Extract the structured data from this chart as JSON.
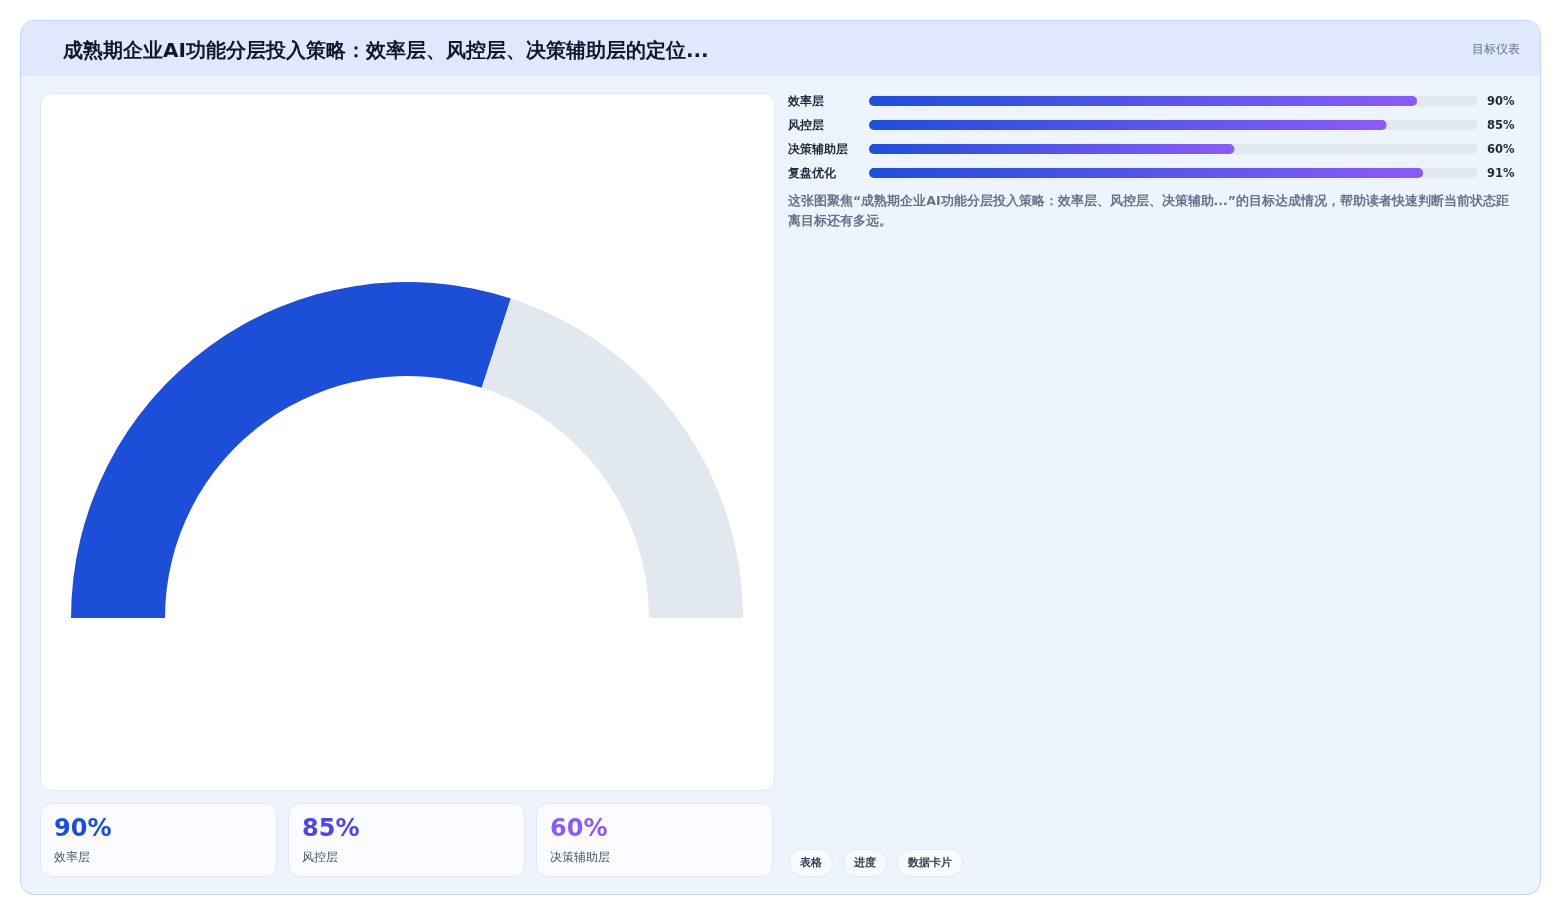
{
  "chart_data": [
    {
      "type": "donut",
      "title": "成熟期企业AI功能分层投入策略：效率层、风控层、决策辅助层的定位...",
      "annotations": [
        "目标仪表"
      ],
      "categories": [
        null,
        null
      ],
      "values": [
        60,
        40
      ],
      "colors": [
        "#1d4ed8",
        "#e2e8f0"
      ]
    },
    {
      "type": "bar",
      "orientation": "horizontal",
      "categories": [
        "效率层",
        "风控层",
        "决策辅助层",
        "复盘优化"
      ],
      "values": [
        90,
        85,
        60,
        91
      ],
      "value_labels": [
        "90%",
        "85%",
        "60%",
        "91%"
      ],
      "color": "#1d4ed8",
      "annotations": [
        "这张图聚焦“成熟期企业AI功能分层投入策略：效率层、风控层、决策辅助...”的目标达成情况，帮助读者快速判断当前状态距离目标还有多远。"
      ]
    },
    {
      "type": "other",
      "categories": [
        "效率层",
        "风控层",
        "决策辅助层"
      ],
      "value_labels": [
        "90%",
        "85%",
        "60%"
      ],
      "annotations": [
        "表格",
        "进度",
        "数据卡片"
      ]
    }
  ]
}
